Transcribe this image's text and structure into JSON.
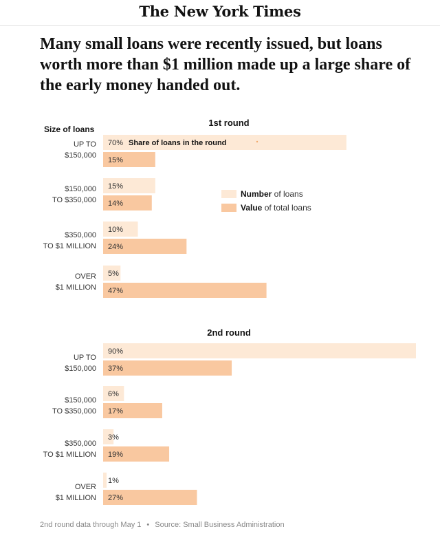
{
  "masthead": {
    "logo_text": "The New York Times"
  },
  "headline": "Many small loans were recently issued, but loans worth more than $1 million made up a large share of the early money handed out.",
  "axis_header": "Size of loans",
  "colors": {
    "number_fill": "#fde9d6",
    "value_fill": "#f9c8a0",
    "dot": "#f2a96b"
  },
  "legend": {
    "items": [
      {
        "bold": "Number",
        "rest": " of loans"
      },
      {
        "bold": "Value",
        "rest": " of total loans"
      }
    ]
  },
  "chart_data": [
    {
      "type": "bar",
      "title": "1st round",
      "orientation": "horizontal",
      "categories": [
        [
          "UP TO",
          "$150,000"
        ],
        [
          "$150,000",
          "TO $350,000"
        ],
        [
          "$350,000",
          "TO $1 MILLION"
        ],
        [
          "OVER",
          "$1 MILLION"
        ]
      ],
      "series": [
        {
          "name": "Number of loans",
          "values": [
            70,
            15,
            10,
            5
          ]
        },
        {
          "name": "Value of total loans",
          "values": [
            15,
            14,
            24,
            47
          ]
        }
      ],
      "annotation": "Share of loans in the round",
      "xlim": [
        0,
        90
      ],
      "unit": "%"
    },
    {
      "type": "bar",
      "title": "2nd round",
      "orientation": "horizontal",
      "categories": [
        [
          "UP TO",
          "$150,000"
        ],
        [
          "$150,000",
          "TO $350,000"
        ],
        [
          "$350,000",
          "TO $1 MILLION"
        ],
        [
          "OVER",
          "$1 MILLION"
        ]
      ],
      "series": [
        {
          "name": "Number of loans",
          "values": [
            90,
            6,
            3,
            1
          ]
        },
        {
          "name": "Value of total loans",
          "values": [
            37,
            17,
            19,
            27
          ]
        }
      ],
      "xlim": [
        0,
        90
      ],
      "unit": "%"
    }
  ],
  "footer": {
    "note": "2nd round data through May 1",
    "separator": "•",
    "source": "Source: Small Business Administration"
  }
}
